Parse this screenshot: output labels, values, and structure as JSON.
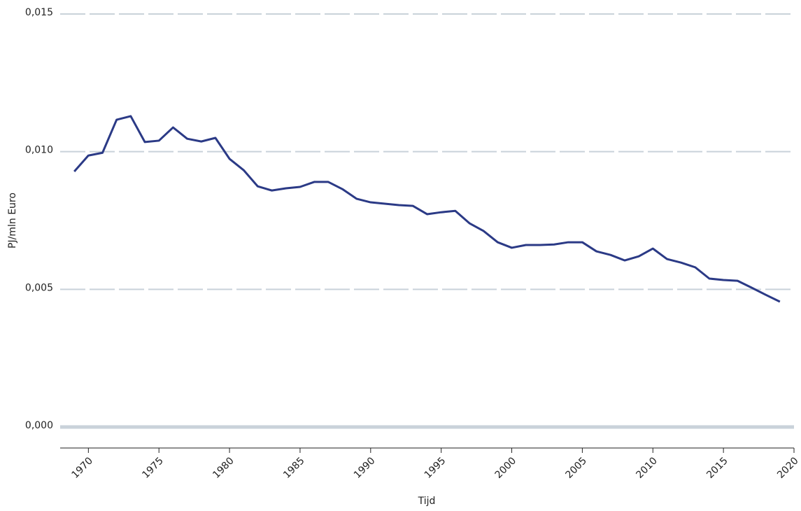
{
  "chart_data": {
    "type": "line",
    "y_label": "PJ/mln Euro",
    "x_label": "Tijd",
    "x": [
      1969,
      1970,
      1971,
      1972,
      1973,
      1974,
      1975,
      1976,
      1977,
      1978,
      1979,
      1980,
      1981,
      1982,
      1983,
      1984,
      1985,
      1986,
      1987,
      1988,
      1989,
      1990,
      1991,
      1992,
      1993,
      1994,
      1995,
      1996,
      1997,
      1998,
      1999,
      2000,
      2001,
      2002,
      2003,
      2004,
      2005,
      2006,
      2007,
      2008,
      2009,
      2010,
      2011,
      2012,
      2013,
      2014,
      2015,
      2016,
      2017,
      2018,
      2019
    ],
    "series": [
      {
        "color": "#2b3a86",
        "values": [
          0.00928,
          0.00986,
          0.00996,
          0.01116,
          0.01129,
          0.01035,
          0.0104,
          0.01088,
          0.01047,
          0.01037,
          0.0105,
          0.00974,
          0.00933,
          0.00874,
          0.00859,
          0.00867,
          0.00872,
          0.0089,
          0.0089,
          0.00864,
          0.00829,
          0.00816,
          0.00811,
          0.00806,
          0.00803,
          0.00773,
          0.0078,
          0.00785,
          0.0074,
          0.00712,
          0.00671,
          0.00651,
          0.00661,
          0.00661,
          0.00663,
          0.00671,
          0.00671,
          0.00638,
          0.00625,
          0.00605,
          0.0062,
          0.00648,
          0.0061,
          0.00597,
          0.0058,
          0.00539,
          0.00534,
          0.00531,
          0.00506,
          0.0048,
          0.00455
        ]
      }
    ],
    "xlim": [
      1968,
      2020
    ],
    "xticks": [
      1970,
      1975,
      1980,
      1985,
      1990,
      1995,
      2000,
      2005,
      2010,
      2015,
      2020
    ],
    "ylim": [
      0,
      0.015
    ],
    "yticks": [
      {
        "value": 0,
        "label": "0,000"
      },
      {
        "value": 0.005,
        "label": "0,005"
      },
      {
        "value": 0.01,
        "label": "0,010"
      },
      {
        "value": 0.015,
        "label": "0,015"
      }
    ],
    "grid": true
  }
}
